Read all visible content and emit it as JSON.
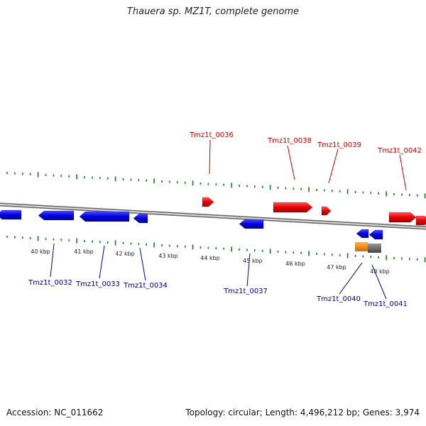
{
  "title": "Thauera sp. MZ1T, complete genome",
  "footer": {
    "accession": "Accession: NC_011662",
    "summary": "Topology: circular; Length: 4,496,212 bp; Genes: 3,974"
  },
  "colors": {
    "forward_gene": "#e60000",
    "reverse_gene": "#0000e0",
    "forward_label": "#cc0000",
    "reverse_label": "#000099",
    "backbone": "#888888",
    "tick": "#1a7a1a",
    "orange_feature": "#f0900a",
    "gray_feature": "#666666"
  },
  "ticks": [
    {
      "label": "40 kbp"
    },
    {
      "label": "41 kbp"
    },
    {
      "label": "42 kbp"
    },
    {
      "label": "43 kbp"
    },
    {
      "label": "44 kbp"
    },
    {
      "label": "45 kbp"
    },
    {
      "label": "46 kbp"
    },
    {
      "label": "47 kbp"
    },
    {
      "label": "48 kbp"
    }
  ],
  "forward_genes": [
    {
      "label": "Tmz1t_0036"
    },
    {
      "label": "Tmz1t_0038"
    },
    {
      "label": "Tmz1t_0039"
    },
    {
      "label": "Tmz1t_0042"
    }
  ],
  "reverse_genes": [
    {
      "label": "Tmz1t_0032"
    },
    {
      "label": "Tmz1t_0033"
    },
    {
      "label": "Tmz1t_0034"
    },
    {
      "label": "Tmz1t_0037"
    },
    {
      "label": "Tmz1t_0040"
    },
    {
      "label": "Tmz1t_0041"
    }
  ]
}
